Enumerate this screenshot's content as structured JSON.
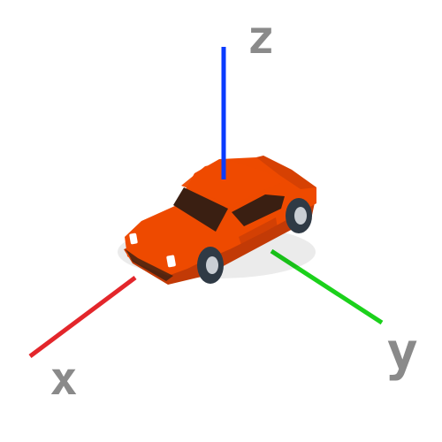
{
  "axes": {
    "x": {
      "label": "x",
      "color": "#e3262b"
    },
    "y": {
      "label": "y",
      "color": "#1bd11b"
    },
    "z": {
      "label": "z",
      "color": "#0a3bff"
    }
  },
  "label_color": "#8a8a8a",
  "object": {
    "name": "car-icon",
    "body_color": "#ee4a00",
    "body_shade_color": "#c23a06",
    "window_color": "#3a1f12",
    "tire_color": "#2f3a45",
    "hubcap_color": "#c9ced4",
    "headlight_color": "#ffffff"
  }
}
